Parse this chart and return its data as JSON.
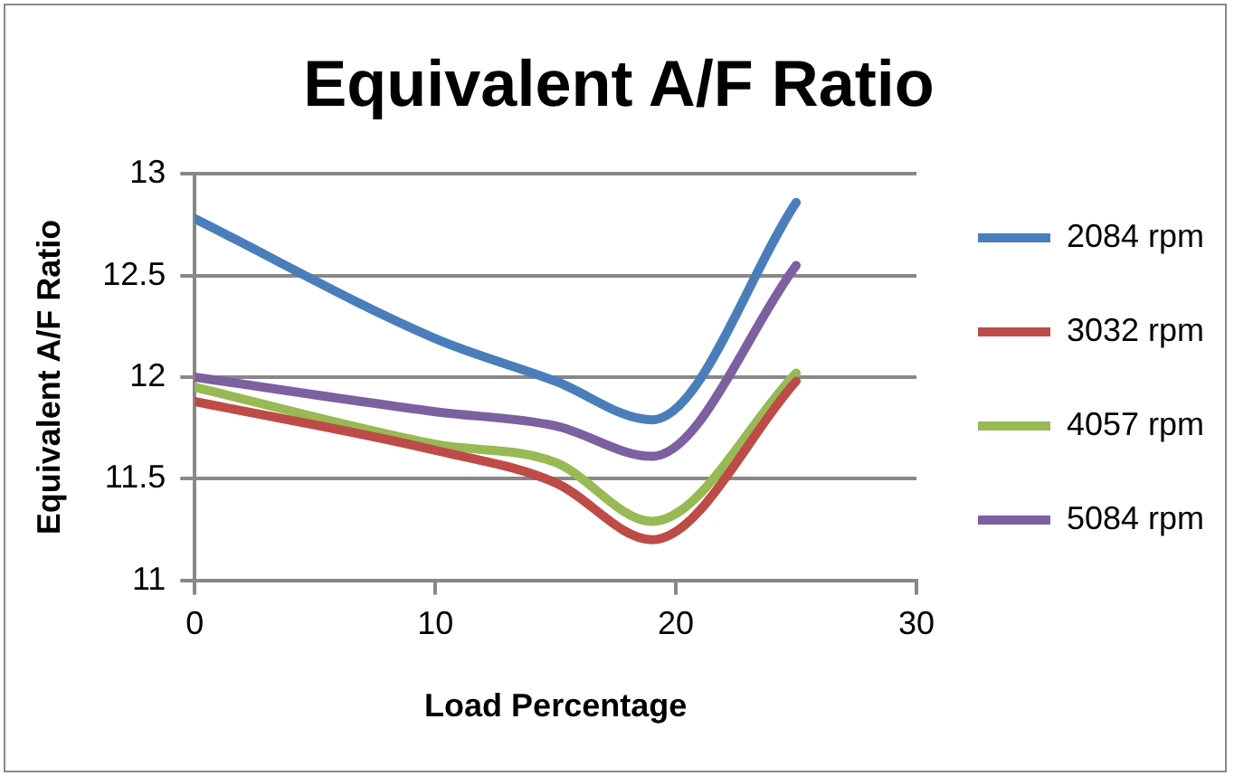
{
  "chart_data": {
    "type": "line",
    "title": "Equivalent A/F Ratio",
    "xlabel": "Load Percentage",
    "ylabel": "Equivalent A/F Ratio",
    "x": [
      0,
      10,
      15,
      19,
      25
    ],
    "series": [
      {
        "name": "2084 rpm",
        "color": "#4a7ebb",
        "values": [
          12.78,
          12.19,
          11.98,
          11.79,
          12.86
        ]
      },
      {
        "name": "3032 rpm",
        "color": "#be4b48",
        "values": [
          11.88,
          11.64,
          11.48,
          11.2,
          11.98
        ]
      },
      {
        "name": "4057 rpm",
        "color": "#98b954",
        "values": [
          11.95,
          11.67,
          11.58,
          11.29,
          12.02
        ]
      },
      {
        "name": "5084 rpm",
        "color": "#7d60a0",
        "values": [
          12.0,
          11.83,
          11.76,
          11.61,
          12.55
        ]
      }
    ],
    "xlim": [
      0,
      30
    ],
    "xticks": [
      0,
      10,
      20,
      30
    ],
    "ylim": [
      11,
      13
    ],
    "yticks": [
      11,
      11.5,
      12,
      12.5,
      13
    ],
    "grid": "y",
    "legend": "right",
    "marker": "none",
    "line_style": "solid"
  }
}
